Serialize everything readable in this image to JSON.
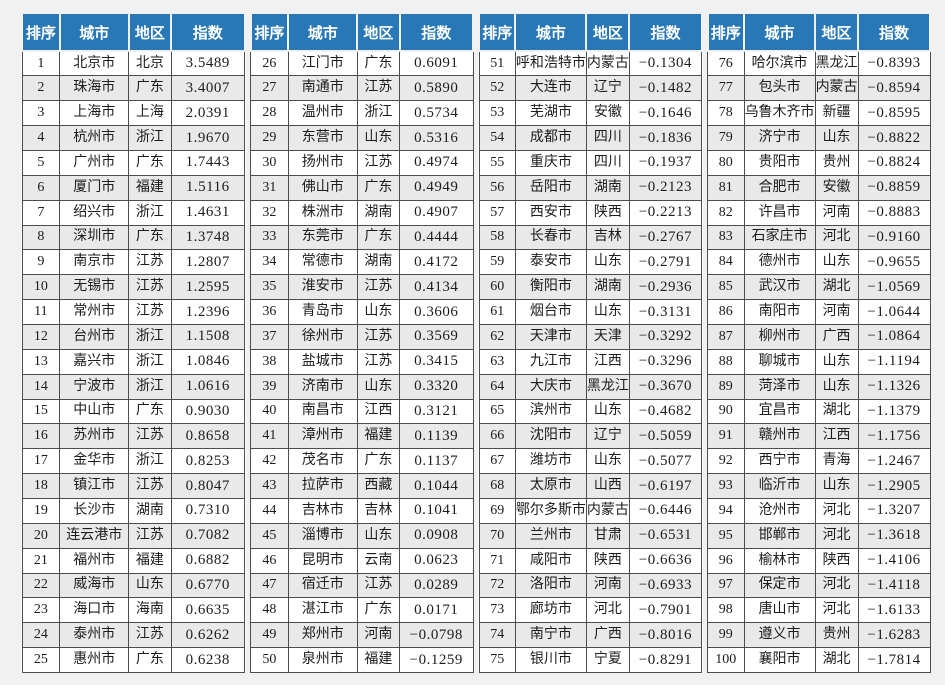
{
  "colors": {
    "page_bg": "#f1f1f1",
    "header_bg": "#2878b8",
    "header_text": "#ffffff",
    "stripe": "#e9e9e9",
    "row_bg": "#ffffff",
    "border": "#4d4d4d",
    "text": "#1c1c1c"
  },
  "chart_data": {
    "type": "table",
    "column_headers": [
      "排序",
      "城市",
      "地区",
      "指数"
    ],
    "layout": "4 column-groups side by side, ranks 1-25, 26-50, 51-75, 76-100",
    "groups": [
      {
        "rows": [
          [
            "1",
            "北京市",
            "北京",
            "3.5489"
          ],
          [
            "2",
            "珠海市",
            "广东",
            "3.4007"
          ],
          [
            "3",
            "上海市",
            "上海",
            "2.0391"
          ],
          [
            "4",
            "杭州市",
            "浙江",
            "1.9670"
          ],
          [
            "5",
            "广州市",
            "广东",
            "1.7443"
          ],
          [
            "6",
            "厦门市",
            "福建",
            "1.5116"
          ],
          [
            "7",
            "绍兴市",
            "浙江",
            "1.4631"
          ],
          [
            "8",
            "深圳市",
            "广东",
            "1.3748"
          ],
          [
            "9",
            "南京市",
            "江苏",
            "1.2807"
          ],
          [
            "10",
            "无锡市",
            "江苏",
            "1.2595"
          ],
          [
            "11",
            "常州市",
            "江苏",
            "1.2396"
          ],
          [
            "12",
            "台州市",
            "浙江",
            "1.1508"
          ],
          [
            "13",
            "嘉兴市",
            "浙江",
            "1.0846"
          ],
          [
            "14",
            "宁波市",
            "浙江",
            "1.0616"
          ],
          [
            "15",
            "中山市",
            "广东",
            "0.9030"
          ],
          [
            "16",
            "苏州市",
            "江苏",
            "0.8658"
          ],
          [
            "17",
            "金华市",
            "浙江",
            "0.8253"
          ],
          [
            "18",
            "镇江市",
            "江苏",
            "0.8047"
          ],
          [
            "19",
            "长沙市",
            "湖南",
            "0.7310"
          ],
          [
            "20",
            "连云港市",
            "江苏",
            "0.7082"
          ],
          [
            "21",
            "福州市",
            "福建",
            "0.6882"
          ],
          [
            "22",
            "威海市",
            "山东",
            "0.6770"
          ],
          [
            "23",
            "海口市",
            "海南",
            "0.6635"
          ],
          [
            "24",
            "泰州市",
            "江苏",
            "0.6262"
          ],
          [
            "25",
            "惠州市",
            "广东",
            "0.6238"
          ]
        ]
      },
      {
        "rows": [
          [
            "26",
            "江门市",
            "广东",
            "0.6091"
          ],
          [
            "27",
            "南通市",
            "江苏",
            "0.5890"
          ],
          [
            "28",
            "温州市",
            "浙江",
            "0.5734"
          ],
          [
            "29",
            "东营市",
            "山东",
            "0.5316"
          ],
          [
            "30",
            "扬州市",
            "江苏",
            "0.4974"
          ],
          [
            "31",
            "佛山市",
            "广东",
            "0.4949"
          ],
          [
            "32",
            "株洲市",
            "湖南",
            "0.4907"
          ],
          [
            "33",
            "东莞市",
            "广东",
            "0.4444"
          ],
          [
            "34",
            "常德市",
            "湖南",
            "0.4172"
          ],
          [
            "35",
            "淮安市",
            "江苏",
            "0.4134"
          ],
          [
            "36",
            "青岛市",
            "山东",
            "0.3606"
          ],
          [
            "37",
            "徐州市",
            "江苏",
            "0.3569"
          ],
          [
            "38",
            "盐城市",
            "江苏",
            "0.3415"
          ],
          [
            "39",
            "济南市",
            "山东",
            "0.3320"
          ],
          [
            "40",
            "南昌市",
            "江西",
            "0.3121"
          ],
          [
            "41",
            "漳州市",
            "福建",
            "0.1139"
          ],
          [
            "42",
            "茂名市",
            "广东",
            "0.1137"
          ],
          [
            "43",
            "拉萨市",
            "西藏",
            "0.1044"
          ],
          [
            "44",
            "吉林市",
            "吉林",
            "0.1041"
          ],
          [
            "45",
            "淄博市",
            "山东",
            "0.0908"
          ],
          [
            "46",
            "昆明市",
            "云南",
            "0.0623"
          ],
          [
            "47",
            "宿迁市",
            "江苏",
            "0.0289"
          ],
          [
            "48",
            "湛江市",
            "广东",
            "0.0171"
          ],
          [
            "49",
            "郑州市",
            "河南",
            "−0.0798"
          ],
          [
            "50",
            "泉州市",
            "福建",
            "−0.1259"
          ]
        ]
      },
      {
        "rows": [
          [
            "51",
            "呼和浩特市",
            "内蒙古",
            "−0.1304"
          ],
          [
            "52",
            "大连市",
            "辽宁",
            "−0.1482"
          ],
          [
            "53",
            "芜湖市",
            "安徽",
            "−0.1646"
          ],
          [
            "54",
            "成都市",
            "四川",
            "−0.1836"
          ],
          [
            "55",
            "重庆市",
            "四川",
            "−0.1937"
          ],
          [
            "56",
            "岳阳市",
            "湖南",
            "−0.2123"
          ],
          [
            "57",
            "西安市",
            "陕西",
            "−0.2213"
          ],
          [
            "58",
            "长春市",
            "吉林",
            "−0.2767"
          ],
          [
            "59",
            "泰安市",
            "山东",
            "−0.2791"
          ],
          [
            "60",
            "衡阳市",
            "湖南",
            "−0.2936"
          ],
          [
            "61",
            "烟台市",
            "山东",
            "−0.3131"
          ],
          [
            "62",
            "天津市",
            "天津",
            "−0.3292"
          ],
          [
            "63",
            "九江市",
            "江西",
            "−0.3296"
          ],
          [
            "64",
            "大庆市",
            "黑龙江",
            "−0.3670"
          ],
          [
            "65",
            "滨州市",
            "山东",
            "−0.4682"
          ],
          [
            "66",
            "沈阳市",
            "辽宁",
            "−0.5059"
          ],
          [
            "67",
            "潍坊市",
            "山东",
            "−0.5077"
          ],
          [
            "68",
            "太原市",
            "山西",
            "−0.6197"
          ],
          [
            "69",
            "鄂尔多斯市",
            "内蒙古",
            "−0.6446"
          ],
          [
            "70",
            "兰州市",
            "甘肃",
            "−0.6531"
          ],
          [
            "71",
            "咸阳市",
            "陕西",
            "−0.6636"
          ],
          [
            "72",
            "洛阳市",
            "河南",
            "−0.6933"
          ],
          [
            "73",
            "廊坊市",
            "河北",
            "−0.7901"
          ],
          [
            "74",
            "南宁市",
            "广西",
            "−0.8016"
          ],
          [
            "75",
            "银川市",
            "宁夏",
            "−0.8291"
          ]
        ]
      },
      {
        "rows": [
          [
            "76",
            "哈尔滨市",
            "黑龙江",
            "−0.8393"
          ],
          [
            "77",
            "包头市",
            "内蒙古",
            "−0.8594"
          ],
          [
            "78",
            "乌鲁木齐市",
            "新疆",
            "−0.8595"
          ],
          [
            "79",
            "济宁市",
            "山东",
            "−0.8822"
          ],
          [
            "80",
            "贵阳市",
            "贵州",
            "−0.8824"
          ],
          [
            "81",
            "合肥市",
            "安徽",
            "−0.8859"
          ],
          [
            "82",
            "许昌市",
            "河南",
            "−0.8883"
          ],
          [
            "83",
            "石家庄市",
            "河北",
            "−0.9160"
          ],
          [
            "84",
            "德州市",
            "山东",
            "−0.9655"
          ],
          [
            "85",
            "武汉市",
            "湖北",
            "−1.0569"
          ],
          [
            "86",
            "南阳市",
            "河南",
            "−1.0644"
          ],
          [
            "87",
            "柳州市",
            "广西",
            "−1.0864"
          ],
          [
            "88",
            "聊城市",
            "山东",
            "−1.1194"
          ],
          [
            "89",
            "菏泽市",
            "山东",
            "−1.1326"
          ],
          [
            "90",
            "宜昌市",
            "湖北",
            "−1.1379"
          ],
          [
            "91",
            "赣州市",
            "江西",
            "−1.1756"
          ],
          [
            "92",
            "西宁市",
            "青海",
            "−1.2467"
          ],
          [
            "93",
            "临沂市",
            "山东",
            "−1.2905"
          ],
          [
            "94",
            "沧州市",
            "河北",
            "−1.3207"
          ],
          [
            "95",
            "邯郸市",
            "河北",
            "−1.3618"
          ],
          [
            "96",
            "榆林市",
            "陕西",
            "−1.4106"
          ],
          [
            "97",
            "保定市",
            "河北",
            "−1.4118"
          ],
          [
            "98",
            "唐山市",
            "河北",
            "−1.6133"
          ],
          [
            "99",
            "遵义市",
            "贵州",
            "−1.6283"
          ],
          [
            "100",
            "襄阳市",
            "湖北",
            "−1.7814"
          ]
        ]
      }
    ]
  }
}
